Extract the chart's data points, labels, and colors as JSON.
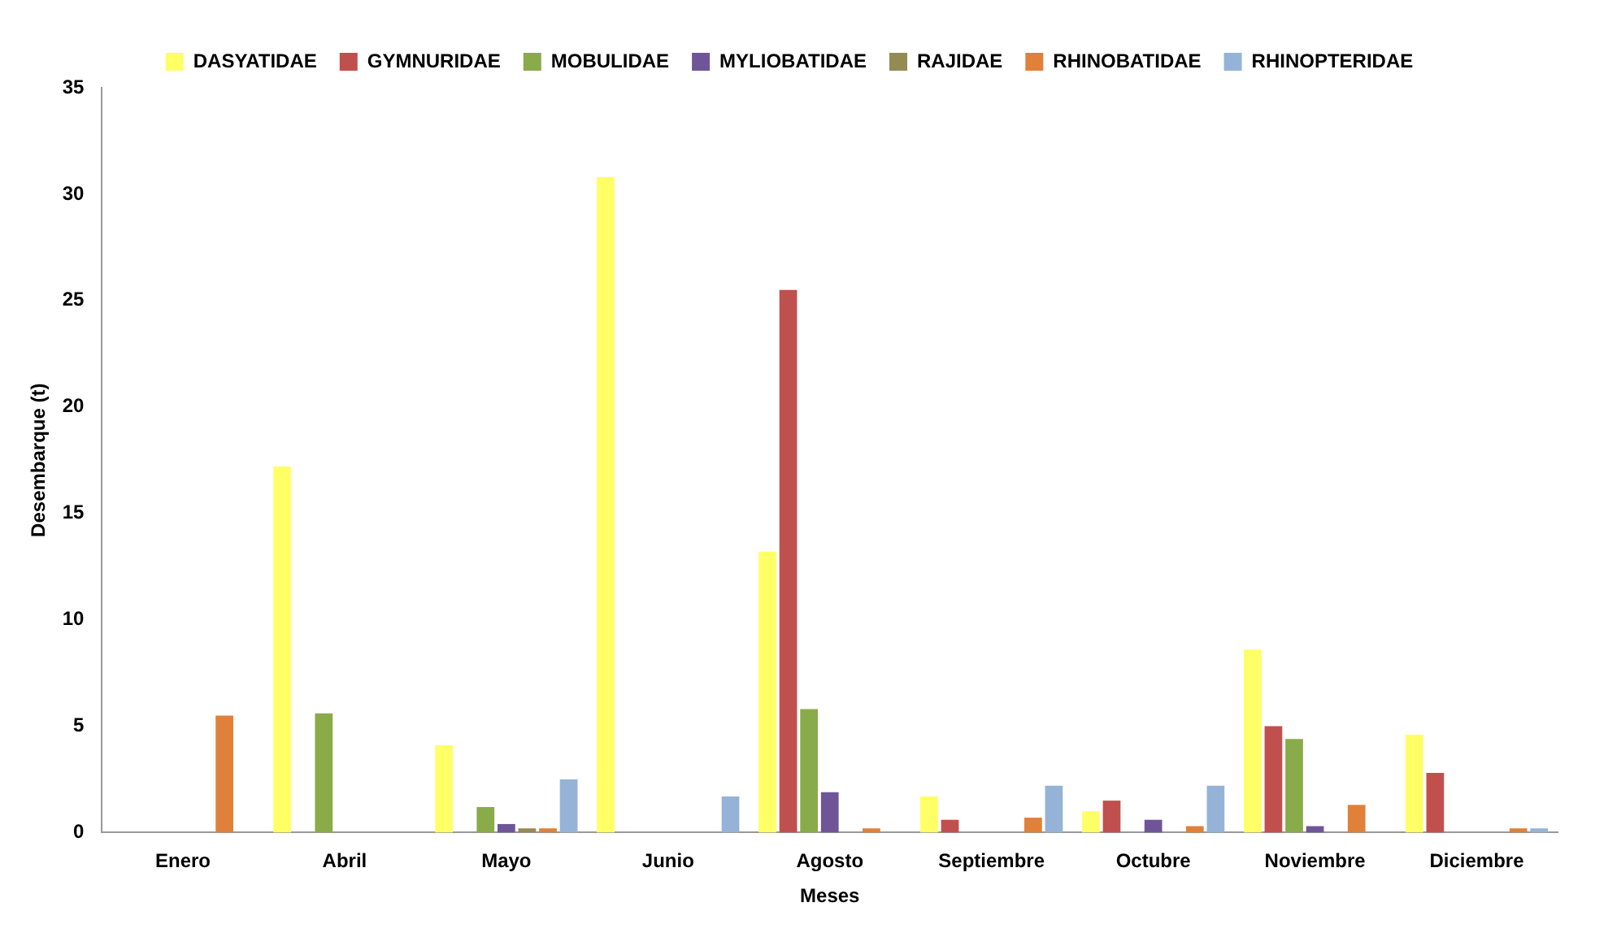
{
  "chart_data": {
    "type": "bar",
    "xlabel": "Meses",
    "ylabel": "Desembarque (t)",
    "categories": [
      "Enero",
      "Abril",
      "Mayo",
      "Junio",
      "Agosto",
      "Septiembre",
      "Octubre",
      "Noviembre",
      "Diciembre"
    ],
    "series": [
      {
        "name": "DASYATIDAE",
        "color": "#ffff66",
        "values": [
          null,
          17.2,
          4.1,
          30.8,
          13.2,
          1.7,
          1.0,
          8.6,
          4.6
        ]
      },
      {
        "name": "GYMNURIDAE",
        "color": "#c0504d",
        "values": [
          null,
          null,
          null,
          null,
          25.5,
          0.6,
          1.5,
          5.0,
          2.8
        ]
      },
      {
        "name": "MOBULIDAE",
        "color": "#8aab4a",
        "values": [
          null,
          5.6,
          1.2,
          null,
          5.8,
          null,
          null,
          4.4,
          null
        ]
      },
      {
        "name": "MYLIOBATIDAE",
        "color": "#6f5597",
        "values": [
          null,
          null,
          0.4,
          null,
          1.9,
          null,
          0.6,
          0.3,
          null
        ]
      },
      {
        "name": "RAJIDAE",
        "color": "#948a54",
        "values": [
          null,
          null,
          0.2,
          null,
          null,
          null,
          null,
          null,
          null
        ]
      },
      {
        "name": "RHINOBATIDAE",
        "color": "#e0803a",
        "values": [
          5.5,
          null,
          0.2,
          null,
          0.2,
          0.7,
          0.3,
          1.3,
          0.2
        ]
      },
      {
        "name": "RHINOPTERIDAE",
        "color": "#95b3d7",
        "values": [
          null,
          null,
          2.5,
          1.7,
          null,
          2.2,
          2.2,
          null,
          0.2
        ]
      }
    ],
    "ylim": [
      0,
      35
    ],
    "yticks": [
      0,
      5,
      10,
      15,
      20,
      25,
      30,
      35
    ],
    "grid": false,
    "legend": "top"
  }
}
